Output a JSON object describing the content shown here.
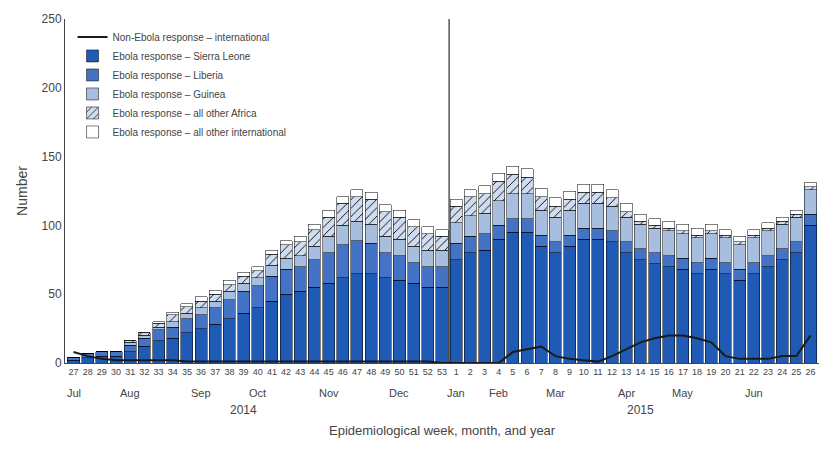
{
  "chart_data": {
    "type": "bar",
    "stacked": true,
    "ylabel": "Number",
    "xlabel": "Epidemiological week, month, and year",
    "categories": [
      "27",
      "28",
      "29",
      "30",
      "31",
      "32",
      "33",
      "34",
      "35",
      "36",
      "37",
      "38",
      "39",
      "40",
      "41",
      "42",
      "43",
      "44",
      "45",
      "46",
      "47",
      "48",
      "49",
      "50",
      "51",
      "52",
      "53",
      "1",
      "2",
      "3",
      "4",
      "5",
      "6",
      "7",
      "8",
      "9",
      "10",
      "11",
      "12",
      "13",
      "14",
      "15",
      "16",
      "17",
      "18",
      "19",
      "20",
      "21",
      "22",
      "23",
      "24",
      "25",
      "26"
    ],
    "series": [
      {
        "name": "Ebola response – Sierra Leone",
        "color": "#1f5ab5",
        "values": [
          2,
          4,
          5,
          5,
          8,
          12,
          16,
          18,
          22,
          25,
          28,
          32,
          36,
          40,
          45,
          50,
          52,
          55,
          58,
          62,
          65,
          65,
          62,
          60,
          58,
          55,
          55,
          75,
          80,
          82,
          90,
          95,
          95,
          85,
          80,
          85,
          90,
          90,
          88,
          80,
          75,
          72,
          70,
          68,
          65,
          68,
          65,
          60,
          65,
          70,
          75,
          80,
          100
        ]
      },
      {
        "name": "Ebola response – Liberia",
        "color": "#4472c4",
        "values": [
          2,
          3,
          3,
          3,
          5,
          6,
          8,
          8,
          10,
          10,
          12,
          14,
          16,
          16,
          18,
          18,
          18,
          20,
          22,
          24,
          24,
          22,
          18,
          18,
          15,
          15,
          15,
          12,
          12,
          12,
          10,
          10,
          10,
          8,
          8,
          8,
          8,
          8,
          8,
          8,
          8,
          8,
          8,
          8,
          8,
          8,
          8,
          8,
          8,
          8,
          8,
          8,
          8
        ]
      },
      {
        "name": "Ebola response – Guinea",
        "color": "#a8bedf",
        "values": [
          0,
          0,
          0,
          0,
          2,
          2,
          2,
          4,
          4,
          5,
          5,
          6,
          6,
          6,
          8,
          8,
          8,
          10,
          12,
          14,
          14,
          14,
          12,
          12,
          12,
          12,
          12,
          15,
          15,
          15,
          18,
          18,
          18,
          18,
          18,
          18,
          18,
          18,
          18,
          18,
          18,
          18,
          18,
          18,
          18,
          18,
          18,
          18,
          18,
          18,
          18,
          18,
          18
        ]
      },
      {
        "name": "Ebola response – all other Africa",
        "color": "#d0ddf0",
        "marker": "hatch",
        "values": [
          0,
          0,
          0,
          0,
          1,
          2,
          3,
          5,
          5,
          5,
          5,
          5,
          5,
          5,
          8,
          10,
          10,
          12,
          14,
          16,
          18,
          18,
          18,
          16,
          14,
          12,
          10,
          12,
          14,
          14,
          14,
          14,
          12,
          10,
          8,
          8,
          8,
          8,
          6,
          4,
          2,
          2,
          2,
          2,
          2,
          2,
          2,
          2,
          2,
          2,
          2,
          2,
          2
        ]
      },
      {
        "name": "Ebola response – all other international",
        "color": "#ffffff",
        "values": [
          0,
          0,
          0,
          0,
          0,
          0,
          1,
          2,
          2,
          3,
          3,
          3,
          3,
          3,
          3,
          3,
          4,
          4,
          5,
          5,
          5,
          5,
          5,
          5,
          5,
          5,
          5,
          5,
          5,
          6,
          6,
          6,
          6,
          6,
          6,
          6,
          6,
          6,
          6,
          6,
          5,
          5,
          5,
          5,
          5,
          5,
          4,
          4,
          4,
          4,
          3,
          3,
          3
        ]
      },
      {
        "name": "Non-Ebola response – international",
        "color": "#1a1a1a",
        "type": "line",
        "values": [
          8,
          5,
          3,
          2,
          2,
          2,
          2,
          2,
          1,
          1,
          1,
          1,
          1,
          1,
          1,
          1,
          1,
          1,
          1,
          1,
          1,
          1,
          1,
          1,
          1,
          1,
          0,
          0,
          0,
          0,
          0,
          8,
          10,
          12,
          5,
          3,
          2,
          1,
          5,
          10,
          15,
          18,
          20,
          20,
          18,
          15,
          5,
          3,
          3,
          3,
          5,
          5,
          20
        ]
      }
    ],
    "annotations": [
      [
        {
          "text": "Jul",
          "x": "27"
        },
        {
          "text": "Aug",
          "x": "31"
        },
        {
          "text": "Sep",
          "x": "36"
        },
        {
          "text": "Oct",
          "x": "40"
        },
        {
          "text": "Nov",
          "x": "45"
        },
        {
          "text": "Dec",
          "x": "50"
        },
        {
          "text": "Jan",
          "x": "1"
        },
        {
          "text": "Feb",
          "x": "4"
        },
        {
          "text": "Mar",
          "x": "8"
        },
        {
          "text": "Apr",
          "x": "13"
        },
        {
          "text": "May",
          "x": "17"
        },
        {
          "text": "Jun",
          "x": "22"
        }
      ],
      [
        {
          "text": "2014",
          "x": "39"
        },
        {
          "text": "2015",
          "x": "14"
        }
      ]
    ],
    "ylim": [
      0,
      250
    ],
    "yticks": [
      0,
      50,
      100,
      150,
      200,
      250
    ],
    "grid": false,
    "legend": "upper left"
  }
}
